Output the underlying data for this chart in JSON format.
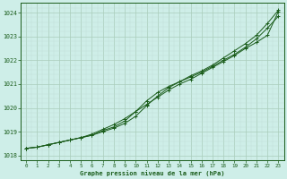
{
  "xlabel": "Graphe pression niveau de la mer (hPa)",
  "ylim": [
    1017.8,
    1024.4
  ],
  "xlim": [
    -0.5,
    23.5
  ],
  "yticks": [
    1018,
    1019,
    1020,
    1021,
    1022,
    1023,
    1024
  ],
  "xticks": [
    0,
    1,
    2,
    3,
    4,
    5,
    6,
    7,
    8,
    9,
    10,
    11,
    12,
    13,
    14,
    15,
    16,
    17,
    18,
    19,
    20,
    21,
    22,
    23
  ],
  "bg_color": "#ceeee8",
  "grid_color_major": "#aaccbb",
  "grid_color_minor": "#c0ddd6",
  "line_color": "#1a5c1a",
  "series1": [
    1018.3,
    1018.35,
    1018.45,
    1018.55,
    1018.65,
    1018.75,
    1018.9,
    1019.1,
    1019.3,
    1019.55,
    1019.85,
    1020.15,
    1020.45,
    1020.75,
    1021.0,
    1021.2,
    1021.45,
    1021.7,
    1021.95,
    1022.2,
    1022.5,
    1022.75,
    1023.05,
    1024.05
  ],
  "series2": [
    1018.3,
    1018.35,
    1018.45,
    1018.55,
    1018.65,
    1018.75,
    1018.85,
    1019.05,
    1019.2,
    1019.45,
    1019.85,
    1020.3,
    1020.65,
    1020.9,
    1021.1,
    1021.3,
    1021.5,
    1021.75,
    1022.0,
    1022.25,
    1022.55,
    1022.9,
    1023.35,
    1023.85
  ],
  "series3": [
    1018.3,
    1018.35,
    1018.45,
    1018.55,
    1018.65,
    1018.75,
    1018.85,
    1019.0,
    1019.15,
    1019.35,
    1019.65,
    1020.1,
    1020.5,
    1020.85,
    1021.1,
    1021.35,
    1021.55,
    1021.8,
    1022.1,
    1022.4,
    1022.7,
    1023.05,
    1023.55,
    1024.1
  ],
  "figsize": [
    3.2,
    2.0
  ],
  "dpi": 100
}
